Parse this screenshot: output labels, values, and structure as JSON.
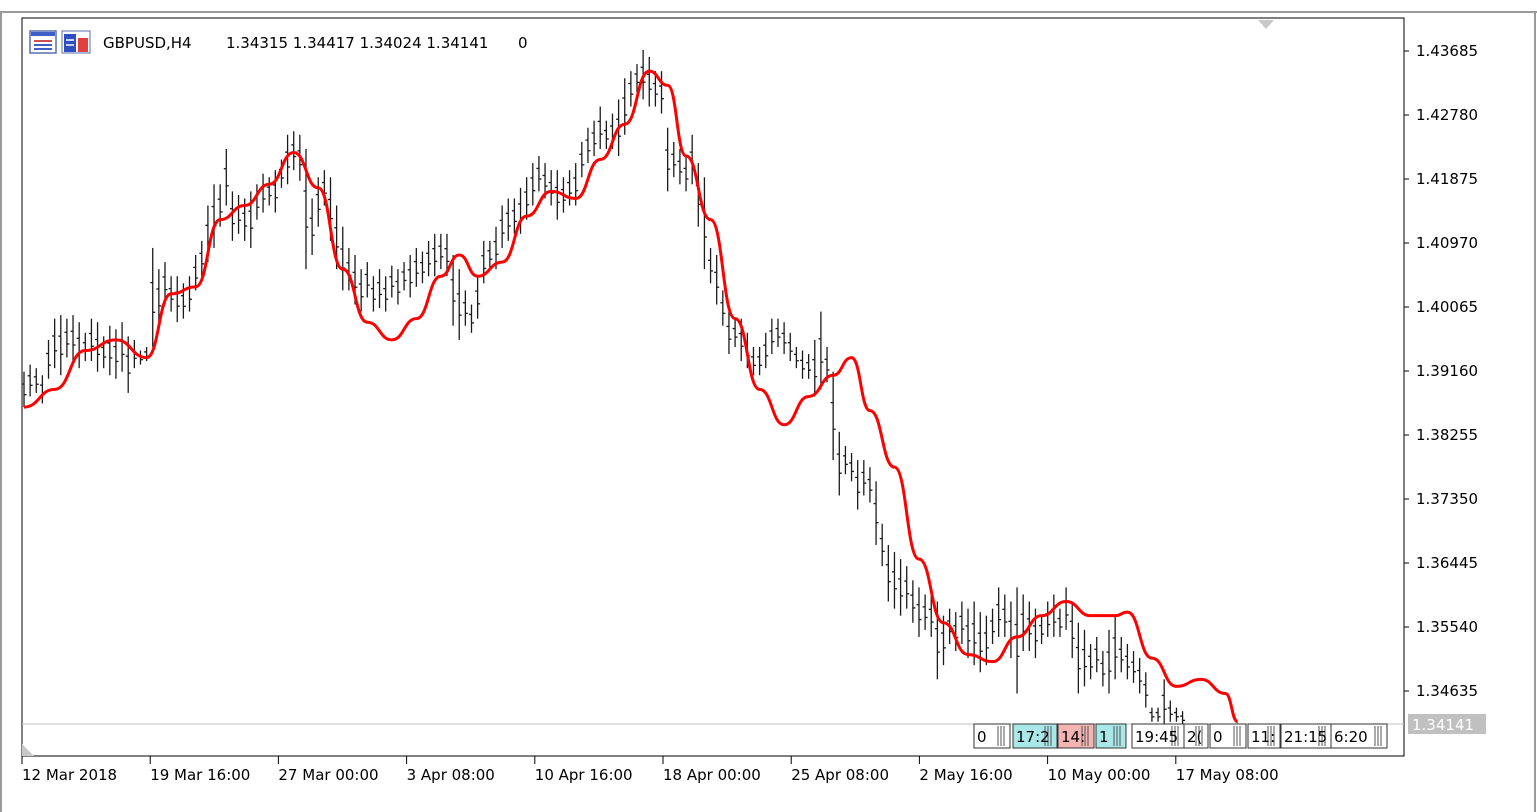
{
  "header": {
    "symbol": "GBPUSD,H4",
    "ohlc": "1.34315 1.34417 1.34024 1.34141",
    "volume": "0"
  },
  "price_axis": {
    "ticks": [
      "1.43685",
      "1.42780",
      "1.41875",
      "1.40970",
      "1.40065",
      "1.39160",
      "1.38255",
      "1.37350",
      "1.36445",
      "1.35540",
      "1.34635"
    ],
    "current_price": "1.34141"
  },
  "time_axis": {
    "ticks": [
      "12 Mar 2018",
      "19 Mar 16:00",
      "27 Mar 00:00",
      "3 Apr 08:00",
      "10 Apr 16:00",
      "18 Apr 00:00",
      "25 Apr 08:00",
      "2 May 16:00",
      "10 May 00:00",
      "17 May 08:00"
    ]
  },
  "session_boxes": [
    "0",
    "17:2",
    "14:",
    "1",
    "19:45",
    "2(",
    "0",
    "11:",
    "21:15",
    "6:20"
  ],
  "colors": {
    "bars": "#1a1a1a",
    "ma_line": "#ff0000",
    "price_tag_bg": "#c0c0c0",
    "price_tag_text": "#ffffff",
    "session_cyan": "#a8e8e8",
    "session_pink": "#f4b4b4"
  },
  "icons": [
    "chart-window-icon",
    "chart-data-icon"
  ],
  "chart_data": {
    "type": "ohlc",
    "title": "GBPUSD,H4",
    "xlabel": "",
    "ylabel": "",
    "ylim": [
      1.341,
      1.44
    ],
    "grid": false,
    "series": [
      {
        "kind": "ohlc",
        "note": "approximate 4-hour bars read from the chart; each [high, low]",
        "values": [
          [
            1.3915,
            1.3865
          ],
          [
            1.3925,
            1.388
          ],
          [
            1.392,
            1.3885
          ],
          [
            1.391,
            1.387
          ],
          [
            1.396,
            1.3905
          ],
          [
            1.399,
            1.392
          ],
          [
            1.3995,
            1.391
          ],
          [
            1.399,
            1.3935
          ],
          [
            1.3995,
            1.393
          ],
          [
            1.3985,
            1.392
          ],
          [
            1.397,
            1.393
          ],
          [
            1.399,
            1.393
          ],
          [
            1.3985,
            1.3915
          ],
          [
            1.3965,
            1.392
          ],
          [
            1.398,
            1.391
          ],
          [
            1.3975,
            1.3905
          ],
          [
            1.3985,
            1.3915
          ],
          [
            1.3965,
            1.3885
          ],
          [
            1.396,
            1.392
          ],
          [
            1.3945,
            1.3925
          ],
          [
            1.395,
            1.393
          ],
          [
            1.409,
            1.395
          ],
          [
            1.406,
            1.398
          ],
          [
            1.407,
            1.401
          ],
          [
            1.405,
            1.4
          ],
          [
            1.405,
            1.3985
          ],
          [
            1.404,
            1.399
          ],
          [
            1.405,
            1.4
          ],
          [
            1.408,
            1.403
          ],
          [
            1.41,
            1.405
          ],
          [
            1.415,
            1.407
          ],
          [
            1.418,
            1.409
          ],
          [
            1.418,
            1.412
          ],
          [
            1.423,
            1.415
          ],
          [
            1.417,
            1.41
          ],
          [
            1.4165,
            1.411
          ],
          [
            1.416,
            1.41
          ],
          [
            1.417,
            1.409
          ],
          [
            1.418,
            1.413
          ],
          [
            1.4195,
            1.414
          ],
          [
            1.419,
            1.415
          ],
          [
            1.42,
            1.414
          ],
          [
            1.4215,
            1.4175
          ],
          [
            1.425,
            1.418
          ],
          [
            1.4255,
            1.42
          ],
          [
            1.425,
            1.4185
          ],
          [
            1.423,
            1.406
          ],
          [
            1.416,
            1.408
          ],
          [
            1.419,
            1.412
          ],
          [
            1.42,
            1.415
          ],
          [
            1.419,
            1.41
          ],
          [
            1.415,
            1.406
          ],
          [
            1.412,
            1.403
          ],
          [
            1.409,
            1.403
          ],
          [
            1.408,
            1.401
          ],
          [
            1.406,
            1.4
          ],
          [
            1.407,
            1.402
          ],
          [
            1.405,
            1.4
          ],
          [
            1.406,
            1.4005
          ],
          [
            1.405,
            1.4
          ],
          [
            1.4065,
            1.402
          ],
          [
            1.406,
            1.401
          ],
          [
            1.407,
            1.403
          ],
          [
            1.408,
            1.402
          ],
          [
            1.409,
            1.4035
          ],
          [
            1.4085,
            1.404
          ],
          [
            1.41,
            1.405
          ],
          [
            1.411,
            1.405
          ],
          [
            1.411,
            1.406
          ],
          [
            1.411,
            1.405
          ],
          [
            1.408,
            1.398
          ],
          [
            1.406,
            1.396
          ],
          [
            1.403,
            1.398
          ],
          [
            1.401,
            1.397
          ],
          [
            1.405,
            1.399
          ],
          [
            1.41,
            1.404
          ],
          [
            1.41,
            1.406
          ],
          [
            1.412,
            1.406
          ],
          [
            1.415,
            1.409
          ],
          [
            1.416,
            1.41
          ],
          [
            1.416,
            1.411
          ],
          [
            1.4175,
            1.411
          ],
          [
            1.419,
            1.413
          ],
          [
            1.421,
            1.415
          ],
          [
            1.422,
            1.417
          ],
          [
            1.421,
            1.416
          ],
          [
            1.42,
            1.415
          ],
          [
            1.42,
            1.413
          ],
          [
            1.419,
            1.414
          ],
          [
            1.42,
            1.415
          ],
          [
            1.421,
            1.415
          ],
          [
            1.424,
            1.419
          ],
          [
            1.426,
            1.421
          ],
          [
            1.427,
            1.422
          ],
          [
            1.429,
            1.423
          ],
          [
            1.427,
            1.423
          ],
          [
            1.428,
            1.423
          ],
          [
            1.43,
            1.422
          ],
          [
            1.433,
            1.425
          ],
          [
            1.434,
            1.429
          ],
          [
            1.435,
            1.431
          ],
          [
            1.437,
            1.43
          ],
          [
            1.436,
            1.429
          ],
          [
            1.434,
            1.429
          ],
          [
            1.434,
            1.428
          ],
          [
            1.426,
            1.417
          ],
          [
            1.424,
            1.419
          ],
          [
            1.423,
            1.418
          ],
          [
            1.422,
            1.417
          ],
          [
            1.425,
            1.418
          ],
          [
            1.421,
            1.412
          ],
          [
            1.419,
            1.406
          ],
          [
            1.409,
            1.404
          ],
          [
            1.408,
            1.401
          ],
          [
            1.403,
            1.398
          ],
          [
            1.4,
            1.394
          ],
          [
            1.399,
            1.395
          ],
          [
            1.399,
            1.393
          ],
          [
            1.397,
            1.392
          ],
          [
            1.395,
            1.391
          ],
          [
            1.395,
            1.391
          ],
          [
            1.397,
            1.392
          ],
          [
            1.399,
            1.394
          ],
          [
            1.399,
            1.395
          ],
          [
            1.3985,
            1.394
          ],
          [
            1.397,
            1.393
          ],
          [
            1.395,
            1.392
          ],
          [
            1.3945,
            1.3905
          ],
          [
            1.394,
            1.3905
          ],
          [
            1.396,
            1.388
          ],
          [
            1.4,
            1.389
          ],
          [
            1.395,
            1.39
          ],
          [
            1.3915,
            1.379
          ],
          [
            1.383,
            1.374
          ],
          [
            1.381,
            1.377
          ],
          [
            1.38,
            1.376
          ],
          [
            1.379,
            1.372
          ],
          [
            1.379,
            1.374
          ],
          [
            1.378,
            1.373
          ],
          [
            1.376,
            1.367
          ],
          [
            1.37,
            1.364
          ],
          [
            1.367,
            1.359
          ],
          [
            1.366,
            1.358
          ],
          [
            1.365,
            1.357
          ],
          [
            1.364,
            1.358
          ],
          [
            1.362,
            1.356
          ],
          [
            1.361,
            1.354
          ],
          [
            1.36,
            1.355
          ],
          [
            1.36,
            1.354
          ],
          [
            1.359,
            1.348
          ],
          [
            1.357,
            1.35
          ],
          [
            1.358,
            1.353
          ],
          [
            1.3575,
            1.352
          ],
          [
            1.359,
            1.353
          ],
          [
            1.358,
            1.351
          ],
          [
            1.359,
            1.35
          ],
          [
            1.3575,
            1.349
          ],
          [
            1.357,
            1.35
          ],
          [
            1.358,
            1.353
          ],
          [
            1.361,
            1.354
          ],
          [
            1.36,
            1.354
          ],
          [
            1.359,
            1.351
          ],
          [
            1.361,
            1.346
          ],
          [
            1.36,
            1.352
          ],
          [
            1.359,
            1.352
          ],
          [
            1.358,
            1.351
          ],
          [
            1.357,
            1.353
          ],
          [
            1.359,
            1.354
          ],
          [
            1.36,
            1.354
          ],
          [
            1.358,
            1.354
          ],
          [
            1.361,
            1.355
          ],
          [
            1.359,
            1.351
          ],
          [
            1.356,
            1.346
          ],
          [
            1.355,
            1.347
          ],
          [
            1.353,
            1.348
          ],
          [
            1.354,
            1.349
          ],
          [
            1.352,
            1.347
          ],
          [
            1.355,
            1.346
          ],
          [
            1.357,
            1.348
          ],
          [
            1.354,
            1.349
          ],
          [
            1.353,
            1.348
          ],
          [
            1.352,
            1.3475
          ],
          [
            1.351,
            1.346
          ],
          [
            1.349,
            1.344
          ],
          [
            1.344,
            1.342
          ],
          [
            1.344,
            1.342
          ],
          [
            1.348,
            1.3415
          ],
          [
            1.345,
            1.342
          ],
          [
            1.344,
            1.342
          ],
          [
            1.3435,
            1.3415
          ]
        ]
      },
      {
        "kind": "line",
        "note": "red moving average; [bar index, value]",
        "values": [
          [
            0,
            1.3865
          ],
          [
            5,
            1.389
          ],
          [
            10,
            1.3945
          ],
          [
            15,
            1.396
          ],
          [
            20,
            1.3935
          ],
          [
            24,
            1.4025
          ],
          [
            28,
            1.4035
          ],
          [
            32,
            1.413
          ],
          [
            36,
            1.415
          ],
          [
            40,
            1.418
          ],
          [
            44,
            1.4225
          ],
          [
            48,
            1.4175
          ],
          [
            52,
            1.406
          ],
          [
            56,
            1.3985
          ],
          [
            60,
            1.396
          ],
          [
            64,
            1.399
          ],
          [
            68,
            1.405
          ],
          [
            71,
            1.408
          ],
          [
            74,
            1.405
          ],
          [
            78,
            1.407
          ],
          [
            82,
            1.4135
          ],
          [
            86,
            1.417
          ],
          [
            90,
            1.416
          ],
          [
            94,
            1.4215
          ],
          [
            98,
            1.4265
          ],
          [
            102,
            1.434
          ],
          [
            105,
            1.432
          ],
          [
            108,
            1.422
          ],
          [
            112,
            1.413
          ],
          [
            116,
            1.399
          ],
          [
            120,
            1.389
          ],
          [
            124,
            1.384
          ],
          [
            128,
            1.388
          ],
          [
            132,
            1.391
          ],
          [
            135,
            1.3935
          ],
          [
            138,
            1.386
          ],
          [
            142,
            1.378
          ],
          [
            146,
            1.365
          ],
          [
            150,
            1.356
          ],
          [
            154,
            1.3515
          ],
          [
            158,
            1.3505
          ],
          [
            162,
            1.354
          ],
          [
            166,
            1.357
          ],
          [
            170,
            1.359
          ],
          [
            174,
            1.357
          ],
          [
            178,
            1.357
          ],
          [
            180,
            1.3575
          ],
          [
            184,
            1.351
          ],
          [
            188,
            1.347
          ],
          [
            192,
            1.348
          ],
          [
            196,
            1.346
          ],
          [
            198,
            1.342
          ]
        ]
      }
    ]
  }
}
